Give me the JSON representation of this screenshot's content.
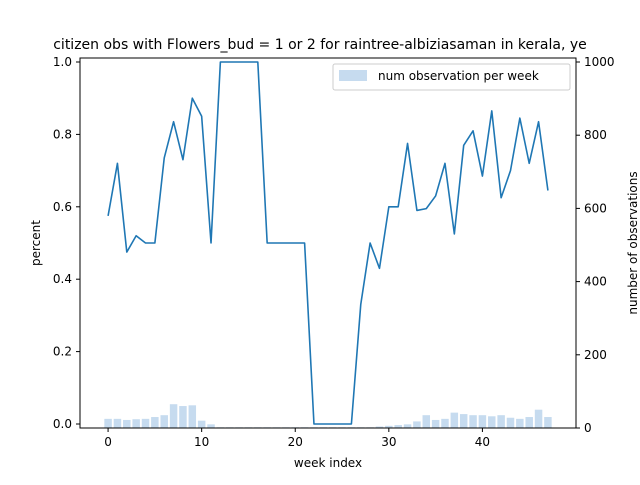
{
  "chart_data": {
    "type": "bar+line",
    "title": "citizen obs with Flowers_bud = 1 or 2 for raintree-albiziasaman in kerala, ye",
    "xlabel": "week index",
    "ylabel_left": "percent",
    "ylabel_right": "number of observations",
    "xlim": [
      -3,
      50
    ],
    "ylim_left": [
      0,
      1.0
    ],
    "ylim_right": [
      0,
      1000
    ],
    "xticks": [
      0,
      10,
      20,
      30,
      40
    ],
    "yticks_left": [
      0.0,
      0.2,
      0.4,
      0.6,
      0.8,
      1.0
    ],
    "yticks_right": [
      0,
      200,
      400,
      600,
      800,
      1000
    ],
    "xtick_labels": [
      "0",
      "10",
      "20",
      "30",
      "40"
    ],
    "ytick_labels_left": [
      "0.0",
      "0.2",
      "0.4",
      "0.6",
      "0.8",
      "1.0"
    ],
    "ytick_labels_right": [
      "0",
      "200",
      "400",
      "600",
      "800",
      "1000"
    ],
    "legend": {
      "placement": "top-right",
      "entries": [
        "num observation per week"
      ]
    },
    "grid": false,
    "colors": {
      "line": "#1f77b4",
      "bar": "#c6dbef"
    },
    "x": [
      0,
      1,
      2,
      3,
      4,
      5,
      6,
      7,
      8,
      9,
      10,
      11,
      12,
      13,
      14,
      15,
      16,
      17,
      18,
      19,
      20,
      21,
      22,
      23,
      24,
      25,
      26,
      27,
      28,
      29,
      30,
      31,
      32,
      33,
      34,
      35,
      36,
      37,
      38,
      39,
      40,
      41,
      42,
      43,
      44,
      45,
      46,
      47
    ],
    "percent": [
      0.575,
      0.72,
      0.475,
      0.52,
      0.5,
      0.5,
      0.735,
      0.835,
      0.73,
      0.9,
      0.85,
      0.5,
      1.0,
      1.0,
      1.0,
      1.0,
      1.0,
      0.5,
      0.5,
      0.5,
      0.5,
      0.5,
      0.0,
      0.0,
      0.0,
      0.0,
      0.0,
      0.33,
      0.5,
      0.43,
      0.6,
      0.6,
      0.775,
      0.59,
      0.595,
      0.63,
      0.72,
      0.525,
      0.77,
      0.81,
      0.685,
      0.865,
      0.625,
      0.7,
      0.845,
      0.72,
      0.835,
      0.645
    ],
    "observations": [
      25,
      25,
      22,
      24,
      25,
      30,
      35,
      65,
      60,
      62,
      20,
      10,
      2,
      2,
      2,
      2,
      2,
      2,
      2,
      2,
      2,
      2,
      2,
      2,
      2,
      2,
      2,
      2,
      2,
      4,
      6,
      8,
      10,
      18,
      35,
      22,
      25,
      42,
      38,
      35,
      35,
      32,
      35,
      28,
      25,
      30,
      50,
      30
    ]
  }
}
